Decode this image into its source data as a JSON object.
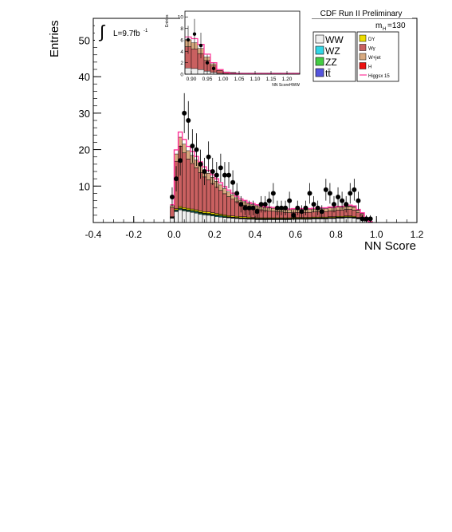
{
  "chart_data": {
    "type": "bar",
    "title": "CDF Run II Preliminary",
    "mass_label_main": "m",
    "mass_label_sub": "H",
    "mass_label_value": "=130",
    "lumi_symbol": "∫",
    "lumi_text": "L=9.7fb",
    "lumi_sup": "-1",
    "xlabel": "NN Score",
    "ylabel": "Entries",
    "xlim": [
      -0.4,
      1.2
    ],
    "ylim": [
      0,
      56
    ],
    "x_ticks": [
      "-0.4",
      "-0.2",
      "0.0",
      "0.2",
      "0.4",
      "0.6",
      "0.8",
      "1.0",
      "1.2"
    ],
    "y_ticks": [
      "10",
      "20",
      "30",
      "40",
      "50"
    ],
    "bin_lefts": [
      -0.02,
      0.0,
      0.02,
      0.04,
      0.06,
      0.08,
      0.1,
      0.12,
      0.14,
      0.16,
      0.18,
      0.2,
      0.22,
      0.24,
      0.26,
      0.28,
      0.3,
      0.32,
      0.34,
      0.36,
      0.38,
      0.4,
      0.42,
      0.44,
      0.46,
      0.48,
      0.5,
      0.52,
      0.54,
      0.56,
      0.58,
      0.6,
      0.62,
      0.64,
      0.66,
      0.68,
      0.7,
      0.72,
      0.74,
      0.76,
      0.78,
      0.8,
      0.82,
      0.84,
      0.86,
      0.88,
      0.9,
      0.92,
      0.94,
      0.96
    ],
    "bin_width": 0.02,
    "series": [
      {
        "name": "WW",
        "color": "#f0f0f0",
        "values": [
          1.2,
          3.0,
          3.5,
          3.2,
          3.0,
          2.8,
          2.6,
          2.3,
          2.1,
          2.0,
          1.8,
          1.6,
          1.5,
          1.4,
          1.3,
          1.2,
          1.1,
          1.0,
          1.0,
          0.9,
          0.9,
          0.8,
          0.8,
          0.8,
          0.8,
          0.8,
          0.8,
          0.8,
          0.8,
          0.8,
          0.9,
          0.9,
          0.9,
          0.9,
          0.9,
          1.0,
          1.0,
          1.0,
          1.0,
          1.1,
          1.1,
          1.2,
          1.2,
          1.3,
          1.3,
          1.2,
          1.0,
          0.7,
          0.4,
          0.1
        ]
      },
      {
        "name": "WZ",
        "color": "#33d6e6",
        "values": [
          0.1,
          0.2,
          0.2,
          0.2,
          0.2,
          0.2,
          0.2,
          0.2,
          0.2,
          0.2,
          0.2,
          0.2,
          0.2,
          0.1,
          0.1,
          0.1,
          0.1,
          0.1,
          0.1,
          0.1,
          0.1,
          0.1,
          0.1,
          0.1,
          0.1,
          0.1,
          0.1,
          0.1,
          0.1,
          0.1,
          0.1,
          0.1,
          0.1,
          0.1,
          0.1,
          0.1,
          0.1,
          0.1,
          0.1,
          0.1,
          0.1,
          0.1,
          0.1,
          0.1,
          0.1,
          0.1,
          0.1,
          0.1,
          0.0,
          0.0
        ]
      },
      {
        "name": "ZZ",
        "color": "#44cc44",
        "values": [
          0.1,
          0.2,
          0.2,
          0.2,
          0.2,
          0.2,
          0.2,
          0.2,
          0.2,
          0.2,
          0.2,
          0.2,
          0.2,
          0.2,
          0.1,
          0.1,
          0.1,
          0.1,
          0.1,
          0.1,
          0.1,
          0.1,
          0.1,
          0.1,
          0.1,
          0.1,
          0.1,
          0.1,
          0.1,
          0.1,
          0.1,
          0.1,
          0.1,
          0.1,
          0.1,
          0.1,
          0.1,
          0.1,
          0.1,
          0.1,
          0.1,
          0.1,
          0.1,
          0.1,
          0.1,
          0.1,
          0.1,
          0.1,
          0.0,
          0.0
        ]
      },
      {
        "name": "tt̄",
        "color": "#5555dd",
        "values": [
          0.1,
          0.1,
          0.1,
          0.1,
          0.1,
          0.1,
          0.1,
          0.1,
          0.1,
          0.1,
          0.1,
          0.1,
          0.1,
          0.1,
          0.1,
          0.1,
          0.1,
          0.1,
          0.1,
          0.1,
          0.1,
          0.1,
          0.1,
          0.1,
          0.1,
          0.1,
          0.1,
          0.1,
          0.1,
          0.1,
          0.1,
          0.1,
          0.1,
          0.1,
          0.1,
          0.1,
          0.1,
          0.1,
          0.1,
          0.1,
          0.1,
          0.1,
          0.1,
          0.1,
          0.1,
          0.1,
          0.1,
          0.1,
          0.0,
          0.0
        ]
      },
      {
        "name": "DY",
        "color": "#eedd00",
        "values": [
          0.1,
          0.3,
          0.4,
          0.4,
          0.4,
          0.4,
          0.4,
          0.4,
          0.4,
          0.4,
          0.4,
          0.4,
          0.3,
          0.3,
          0.3,
          0.3,
          0.3,
          0.3,
          0.3,
          0.3,
          0.2,
          0.2,
          0.2,
          0.2,
          0.2,
          0.2,
          0.2,
          0.2,
          0.2,
          0.2,
          0.2,
          0.2,
          0.2,
          0.2,
          0.2,
          0.2,
          0.2,
          0.2,
          0.2,
          0.2,
          0.2,
          0.2,
          0.2,
          0.2,
          0.2,
          0.2,
          0.1,
          0.1,
          0.1,
          0.0
        ]
      },
      {
        "name": "Wγ",
        "color": "#c96060",
        "values": [
          2.5,
          13.0,
          16.5,
          15.0,
          13.5,
          12.5,
          11.5,
          10.5,
          9.5,
          8.8,
          8.0,
          7.2,
          6.5,
          5.8,
          5.2,
          4.6,
          4.0,
          3.5,
          3.1,
          2.8,
          2.6,
          2.4,
          2.2,
          2.0,
          1.9,
          1.8,
          1.7,
          1.6,
          1.5,
          1.4,
          1.4,
          1.4,
          1.4,
          1.4,
          1.4,
          1.4,
          1.5,
          1.5,
          1.5,
          1.6,
          1.6,
          1.7,
          1.7,
          1.8,
          1.8,
          1.7,
          1.3,
          0.9,
          0.4,
          0.1
        ]
      },
      {
        "name": "W+jet",
        "color": "#d8aa80",
        "values": [
          0.5,
          2.0,
          2.5,
          2.4,
          2.3,
          2.2,
          2.1,
          2.0,
          1.9,
          1.8,
          1.7,
          1.6,
          1.5,
          1.4,
          1.3,
          1.2,
          1.1,
          1.0,
          1.0,
          0.9,
          0.9,
          0.9,
          0.8,
          0.8,
          0.8,
          0.8,
          0.8,
          0.8,
          0.8,
          0.8,
          0.8,
          0.8,
          0.8,
          0.8,
          0.8,
          0.8,
          0.8,
          0.8,
          0.8,
          0.8,
          0.8,
          0.8,
          0.8,
          0.8,
          0.8,
          0.8,
          0.6,
          0.4,
          0.2,
          0.1
        ]
      },
      {
        "name": "H",
        "color": "#ee1111",
        "values": [
          0.0,
          0.0,
          0.0,
          0.0,
          0.0,
          0.0,
          0.0,
          0.0,
          0.0,
          0.0,
          0.0,
          0.0,
          0.0,
          0.0,
          0.0,
          0.0,
          0.0,
          0.0,
          0.0,
          0.0,
          0.0,
          0.0,
          0.0,
          0.0,
          0.0,
          0.0,
          0.0,
          0.0,
          0.0,
          0.0,
          0.0,
          0.0,
          0.0,
          0.0,
          0.0,
          0.0,
          0.0,
          0.0,
          0.0,
          0.0,
          0.0,
          0.0,
          0.0,
          0.1,
          0.1,
          0.1,
          0.1,
          0.1,
          0.1,
          0.0
        ]
      }
    ],
    "signal_line": {
      "name": "Higgsx 15",
      "color": "#ff3399"
    },
    "data_points": {
      "x": [
        -0.01,
        0.01,
        0.03,
        0.05,
        0.07,
        0.09,
        0.11,
        0.13,
        0.15,
        0.17,
        0.19,
        0.21,
        0.23,
        0.25,
        0.27,
        0.29,
        0.31,
        0.33,
        0.35,
        0.37,
        0.39,
        0.41,
        0.43,
        0.45,
        0.47,
        0.49,
        0.51,
        0.53,
        0.55,
        0.57,
        0.59,
        0.61,
        0.63,
        0.65,
        0.67,
        0.69,
        0.71,
        0.73,
        0.75,
        0.77,
        0.79,
        0.81,
        0.83,
        0.85,
        0.87,
        0.89,
        0.91,
        0.93,
        0.95,
        0.97
      ],
      "y": [
        7,
        12,
        17,
        30,
        28,
        21,
        20,
        16,
        14,
        18,
        14,
        13,
        15,
        13,
        13,
        11,
        8,
        5,
        4,
        4,
        4,
        3,
        5,
        5,
        6,
        8,
        4,
        4,
        4,
        6,
        2,
        4,
        3,
        4,
        8,
        5,
        4,
        3,
        9,
        8,
        5,
        7,
        6,
        5,
        8,
        9,
        6,
        1,
        1,
        1
      ]
    },
    "legend_left": [
      "WW",
      "WZ",
      "ZZ",
      "tt̄"
    ],
    "legend_right": [
      "DY",
      "Wγ",
      "W+jet",
      "H",
      "Higgsx 15"
    ],
    "inset": {
      "xlabel": "NN ScoreHWW",
      "ylabel": "Entries",
      "xlim": [
        0.88,
        1.24
      ],
      "ylim": [
        0,
        11
      ],
      "x_ticks": [
        "0.90",
        "0.95",
        "1.00",
        "1.05",
        "1.10",
        "1.15",
        "1.20"
      ],
      "y_ticks": [
        "0",
        "2",
        "4",
        "6",
        "8",
        "10"
      ],
      "bin_lefts": [
        0.88,
        0.9,
        0.92,
        0.94,
        0.96,
        0.98,
        1.0,
        1.02,
        1.04,
        1.06,
        1.08,
        1.1,
        1.12,
        1.14,
        1.16,
        1.18,
        1.2,
        1.22
      ],
      "stack_total": [
        6.0,
        5.5,
        4.5,
        3.0,
        1.8,
        0.8,
        0.4,
        0.3,
        0.2,
        0.2,
        0.2,
        0.2,
        0.2,
        0.2,
        0.2,
        0.2,
        0.2,
        0.2
      ],
      "signal": [
        6.5,
        6.2,
        5.2,
        3.5,
        2.0,
        0.8,
        0.3,
        0.1,
        0.1,
        0.1,
        0.1,
        0.1,
        0.1,
        0.1,
        0.1,
        0.1,
        0.1,
        0.1
      ],
      "data_x": [
        0.89,
        0.91,
        0.93,
        0.95,
        0.97
      ],
      "data_y": [
        6,
        7,
        5,
        2,
        1
      ]
    }
  }
}
